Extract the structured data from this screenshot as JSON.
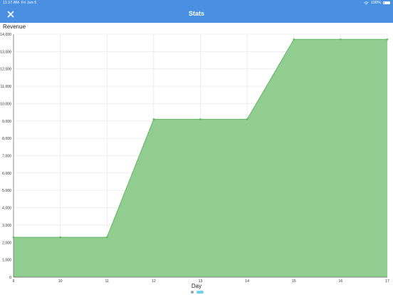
{
  "status_bar": {
    "time": "11:17 AM",
    "date": "Fri Jun 5",
    "battery": "100%"
  },
  "nav": {
    "title": "Stats",
    "close_icon": "close-icon"
  },
  "colors": {
    "nav_bg": "#4a90e2",
    "area_fill": "#91cd91",
    "line": "#62b562",
    "grid": "#e3e3e3"
  },
  "chart_data": {
    "type": "area",
    "title": "",
    "ylabel": "Revenue",
    "xlabel": "Day",
    "x": [
      9,
      10,
      11,
      12,
      13,
      14,
      15,
      16,
      17
    ],
    "series": [
      {
        "values": [
          2300,
          2300,
          2300,
          9100,
          9100,
          9100,
          13700,
          13700,
          13700
        ]
      }
    ],
    "ylim": [
      0,
      14000
    ],
    "yticks": [
      "0",
      "1,000",
      "2,000",
      "3,000",
      "4,000",
      "5,000",
      "6,000",
      "7,000",
      "8,000",
      "9,000",
      "10,000",
      "11,000",
      "12,000",
      "13,000",
      "14,000"
    ],
    "xticks": [
      "9",
      "10",
      "11",
      "12",
      "13",
      "14",
      "15",
      "16",
      "17"
    ],
    "grid": true,
    "legend": "none"
  },
  "pager": {
    "pages": 2,
    "current": 2
  }
}
